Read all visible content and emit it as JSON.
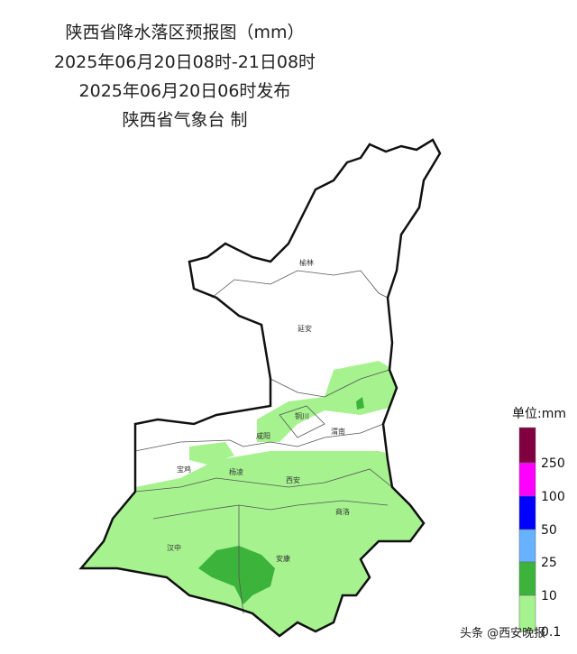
{
  "header": {
    "lines": [
      "陕西省降水落区预报图（mm）",
      "2025年06月20日08时-21日08时",
      "2025年06月20日06时发布",
      "陕西省气象台 制"
    ]
  },
  "cities": [
    "榆林",
    "延安",
    "铜川",
    "渭南",
    "咸阳",
    "宝鸡",
    "杨凌",
    "西安",
    "商洛",
    "汉中",
    "安康"
  ],
  "legend": {
    "title": "单位:mm",
    "labels": [
      "250",
      "100",
      "50",
      "25",
      "10",
      "0.1"
    ]
  },
  "watermark": "头条 @西安晚报"
}
